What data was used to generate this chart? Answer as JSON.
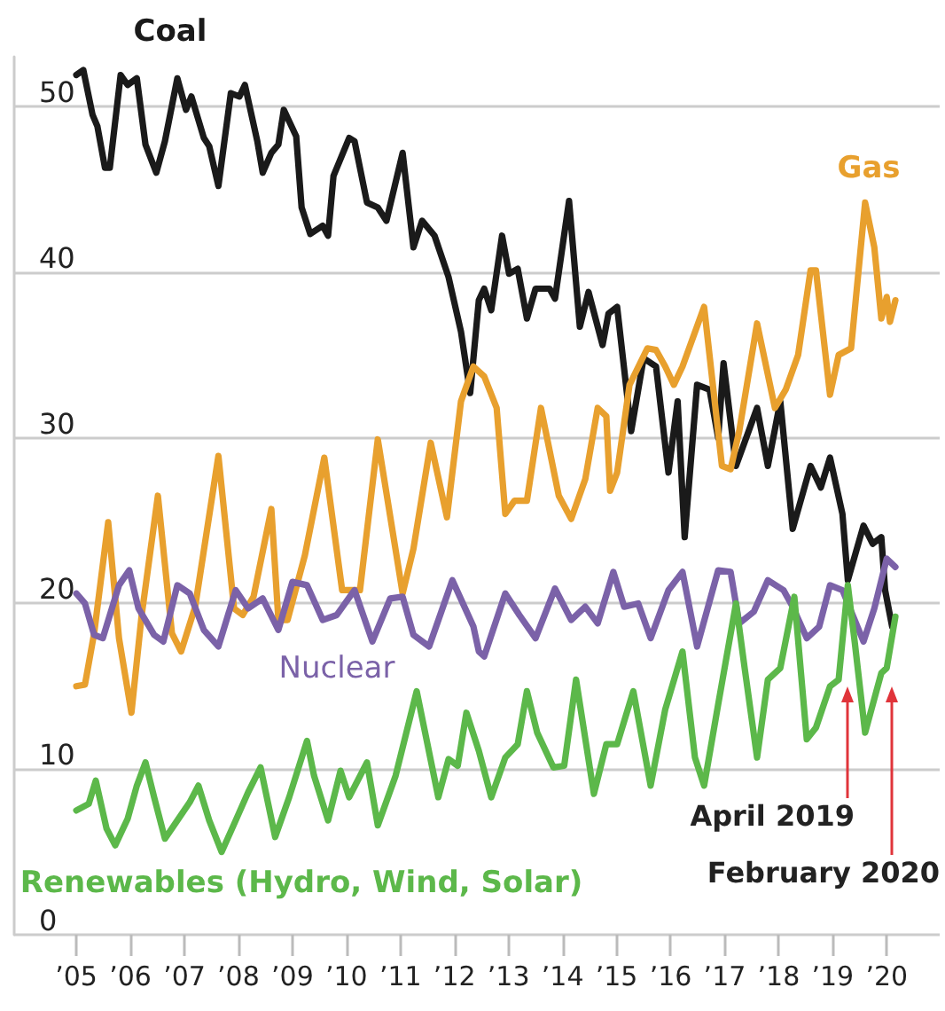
{
  "chart_data": {
    "type": "line",
    "xlim": [
      2003.85,
      2020.98
    ],
    "ylim": [
      0,
      53
    ],
    "xticks": [
      {
        "value": 2005,
        "label": "’05"
      },
      {
        "value": 2006,
        "label": "’06"
      },
      {
        "value": 2007,
        "label": "’07"
      },
      {
        "value": 2008,
        "label": "’08"
      },
      {
        "value": 2009,
        "label": "’09"
      },
      {
        "value": 2010,
        "label": "’10"
      },
      {
        "value": 2011,
        "label": "’11"
      },
      {
        "value": 2012,
        "label": "’12"
      },
      {
        "value": 2013,
        "label": "’13"
      },
      {
        "value": 2014,
        "label": "’14"
      },
      {
        "value": 2015,
        "label": "’15"
      },
      {
        "value": 2016,
        "label": "’16"
      },
      {
        "value": 2017,
        "label": "’17"
      },
      {
        "value": 2018,
        "label": "’18"
      },
      {
        "value": 2019,
        "label": "’19"
      },
      {
        "value": 2020,
        "label": "’20"
      }
    ],
    "yticks": [
      0,
      10,
      20,
      30,
      40,
      50
    ],
    "grid": "y",
    "legend": false,
    "marker": "none",
    "line_style": "solid",
    "series": [
      {
        "name": "Coal",
        "color": "#1a1a1a",
        "x": [
          2005.0,
          2005.13,
          2005.3,
          2005.39,
          2005.53,
          2005.62,
          2005.82,
          2005.95,
          2006.12,
          2006.28,
          2006.48,
          2006.64,
          2006.87,
          2007.03,
          2007.13,
          2007.36,
          2007.46,
          2007.63,
          2007.86,
          2008.02,
          2008.12,
          2008.35,
          2008.45,
          2008.61,
          2008.74,
          2008.84,
          2009.07,
          2009.17,
          2009.33,
          2009.56,
          2009.66,
          2009.76,
          2010.05,
          2010.15,
          2010.38,
          2010.58,
          2010.74,
          2011.04,
          2011.24,
          2011.4,
          2011.63,
          2011.89,
          2012.12,
          2012.29,
          2012.45,
          2012.55,
          2012.68,
          2012.88,
          2013.01,
          2013.17,
          2013.34,
          2013.5,
          2013.76,
          2013.86,
          2014.12,
          2014.32,
          2014.48,
          2014.74,
          2014.85,
          2015.01,
          2015.27,
          2015.5,
          2015.73,
          2015.96,
          2016.13,
          2016.26,
          2016.49,
          2016.72,
          2016.88,
          2016.98,
          2017.21,
          2017.6,
          2017.8,
          2018.03,
          2018.26,
          2018.59,
          2018.78,
          2018.95,
          2019.18,
          2019.28,
          2019.57,
          2019.74,
          2019.9,
          2019.97,
          2020.1
        ],
        "values": [
          51.9,
          52.2,
          49.5,
          48.8,
          46.3,
          46.3,
          51.9,
          51.3,
          51.7,
          47.7,
          46.0,
          47.9,
          51.7,
          49.8,
          50.6,
          48.1,
          47.6,
          45.2,
          50.8,
          50.6,
          51.3,
          47.9,
          46.0,
          47.2,
          47.7,
          49.8,
          48.2,
          43.9,
          42.3,
          42.8,
          42.2,
          45.8,
          48.1,
          47.9,
          44.2,
          43.9,
          43.1,
          47.2,
          41.5,
          43.1,
          42.2,
          39.7,
          36.4,
          32.7,
          38.3,
          39.0,
          37.7,
          42.2,
          39.9,
          40.2,
          37.2,
          39.0,
          39.0,
          38.4,
          44.3,
          36.7,
          38.8,
          35.6,
          37.5,
          37.9,
          30.4,
          34.8,
          34.3,
          27.9,
          32.2,
          24.0,
          33.2,
          32.9,
          30.0,
          34.5,
          28.3,
          31.8,
          28.3,
          32.2,
          24.5,
          28.3,
          27.0,
          28.8,
          25.4,
          21.4,
          24.7,
          23.6,
          24.0,
          20.8,
          18.6
        ]
      },
      {
        "name": "Gas",
        "color": "#e8a02e",
        "x": [
          2005.0,
          2005.16,
          2005.33,
          2005.59,
          2005.79,
          2006.02,
          2006.21,
          2006.51,
          2006.77,
          2006.94,
          2007.2,
          2007.63,
          2007.92,
          2008.08,
          2008.28,
          2008.61,
          2008.74,
          2008.91,
          2009.23,
          2009.59,
          2009.92,
          2010.25,
          2010.58,
          2011.04,
          2011.24,
          2011.56,
          2011.86,
          2012.12,
          2012.35,
          2012.55,
          2012.78,
          2012.94,
          2013.11,
          2013.34,
          2013.6,
          2013.93,
          2014.16,
          2014.42,
          2014.65,
          2014.81,
          2014.88,
          2015.01,
          2015.24,
          2015.57,
          2015.73,
          2015.9,
          2016.06,
          2016.22,
          2016.62,
          2016.95,
          2017.11,
          2017.27,
          2017.6,
          2017.93,
          2018.13,
          2018.36,
          2018.59,
          2018.69,
          2018.95,
          2019.11,
          2019.34,
          2019.6,
          2019.77,
          2019.9,
          2020.0,
          2020.06,
          2020.16
        ],
        "values": [
          15.0,
          15.1,
          18.2,
          24.9,
          17.9,
          13.4,
          19.3,
          26.5,
          18.2,
          17.1,
          19.8,
          28.9,
          19.7,
          19.3,
          20.4,
          25.7,
          19.0,
          19.0,
          22.9,
          28.8,
          20.8,
          20.8,
          29.9,
          20.6,
          23.3,
          29.7,
          25.2,
          32.2,
          34.3,
          33.7,
          31.8,
          25.4,
          26.2,
          26.2,
          31.8,
          26.5,
          25.1,
          27.5,
          31.8,
          31.3,
          26.8,
          27.9,
          33.2,
          35.4,
          35.3,
          34.3,
          33.2,
          34.3,
          37.9,
          28.3,
          28.1,
          30.4,
          36.9,
          31.8,
          32.9,
          35.0,
          40.1,
          40.1,
          32.6,
          35.0,
          35.4,
          44.2,
          41.5,
          37.2,
          38.5,
          37.0,
          38.3
        ]
      },
      {
        "name": "Nuclear",
        "color": "#7b62a8",
        "x": [
          2005.0,
          2005.16,
          2005.33,
          2005.49,
          2005.79,
          2005.98,
          2006.15,
          2006.44,
          2006.61,
          2006.87,
          2007.1,
          2007.36,
          2007.63,
          2007.95,
          2008.18,
          2008.45,
          2008.74,
          2009.0,
          2009.27,
          2009.56,
          2009.82,
          2010.15,
          2010.48,
          2010.81,
          2011.04,
          2011.24,
          2011.53,
          2011.96,
          2012.35,
          2012.45,
          2012.55,
          2012.94,
          2013.2,
          2013.5,
          2013.86,
          2014.16,
          2014.42,
          2014.65,
          2014.94,
          2015.14,
          2015.4,
          2015.63,
          2015.96,
          2016.22,
          2016.49,
          2016.88,
          2017.11,
          2017.27,
          2017.54,
          2017.8,
          2018.09,
          2018.26,
          2018.52,
          2018.75,
          2018.95,
          2019.18,
          2019.57,
          2019.77,
          2020.0,
          2020.16
        ],
        "values": [
          20.6,
          20.0,
          18.1,
          17.9,
          21.1,
          22.0,
          19.7,
          18.1,
          17.7,
          21.1,
          20.6,
          18.4,
          17.4,
          20.8,
          19.7,
          20.3,
          18.4,
          21.3,
          21.1,
          19.0,
          19.3,
          20.8,
          17.7,
          20.3,
          20.4,
          18.1,
          17.4,
          21.4,
          18.6,
          17.1,
          16.8,
          20.6,
          19.3,
          17.9,
          20.9,
          19.0,
          19.8,
          18.8,
          21.9,
          19.8,
          20.0,
          17.9,
          20.8,
          21.9,
          17.4,
          22.0,
          21.9,
          18.8,
          19.5,
          21.4,
          20.8,
          19.8,
          17.9,
          18.6,
          21.1,
          20.8,
          17.7,
          19.7,
          22.7,
          22.2
        ]
      },
      {
        "name": "Renewables (Hydro, Wind, Solar)",
        "color": "#5cb84a",
        "x": [
          2005.0,
          2005.23,
          2005.36,
          2005.56,
          2005.72,
          2005.95,
          2006.12,
          2006.28,
          2006.44,
          2006.64,
          2006.87,
          2007.1,
          2007.26,
          2007.46,
          2007.69,
          2007.95,
          2008.18,
          2008.41,
          2008.68,
          2008.94,
          2009.27,
          2009.4,
          2009.66,
          2009.89,
          2010.05,
          2010.38,
          2010.58,
          2010.91,
          2011.3,
          2011.7,
          2011.89,
          2012.06,
          2012.22,
          2012.45,
          2012.68,
          2012.94,
          2013.17,
          2013.34,
          2013.53,
          2013.83,
          2014.03,
          2014.25,
          2014.58,
          2014.81,
          2015.01,
          2015.31,
          2015.63,
          2015.9,
          2016.22,
          2016.45,
          2016.62,
          2016.88,
          2017.21,
          2017.37,
          2017.6,
          2017.8,
          2018.03,
          2018.29,
          2018.52,
          2018.69,
          2018.95,
          2019.11,
          2019.28,
          2019.41,
          2019.6,
          2019.9,
          2020.0,
          2020.16
        ],
        "values": [
          7.5,
          7.9,
          9.3,
          6.4,
          5.4,
          7.0,
          9.0,
          10.4,
          8.3,
          5.8,
          6.9,
          8.0,
          9.0,
          6.9,
          5.0,
          6.9,
          8.6,
          10.1,
          5.9,
          8.3,
          11.7,
          9.6,
          6.9,
          9.9,
          8.3,
          10.4,
          6.6,
          9.6,
          14.7,
          8.3,
          10.6,
          10.2,
          13.4,
          11.1,
          8.3,
          10.7,
          11.5,
          14.7,
          12.2,
          10.1,
          10.2,
          15.4,
          8.5,
          11.5,
          11.5,
          14.7,
          9.0,
          13.6,
          17.1,
          10.7,
          9.0,
          13.9,
          20.0,
          16.1,
          10.7,
          15.4,
          16.1,
          20.4,
          11.8,
          12.5,
          15.0,
          15.4,
          21.1,
          17.6,
          12.2,
          15.8,
          16.1,
          19.2
        ]
      }
    ],
    "annotations": [
      "April 2019",
      "February 2020"
    ]
  }
}
